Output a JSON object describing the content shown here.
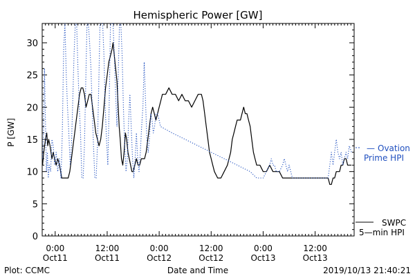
{
  "chart_data": {
    "type": "line",
    "title": "Hemispheric Power [GW]",
    "xlabel": "Date and Time",
    "ylabel": "P [GW]",
    "xlim_hours": [
      -4,
      92
    ],
    "ylim": [
      0,
      33
    ],
    "yticks": [
      0,
      5,
      10,
      15,
      20,
      25,
      30
    ],
    "xticks": [
      {
        "h": 0,
        "t1": "0:00",
        "t2": "Oct11"
      },
      {
        "h": 16,
        "t1": "12:00",
        "t2": "Oct11"
      },
      {
        "h": 32,
        "t1": "0:00",
        "t2": "Oct12"
      },
      {
        "h": 48,
        "t1": "12:00",
        "t2": "Oct12"
      },
      {
        "h": 64,
        "t1": "0:00",
        "t2": "Oct13"
      },
      {
        "h": 80,
        "t1": "12:00",
        "t2": "Oct13"
      }
    ],
    "series": [
      {
        "name": "SWPC 5-min HPI",
        "color": "#000000",
        "style": "solid",
        "points": [
          [
            -3.9,
            11
          ],
          [
            -3.5,
            13
          ],
          [
            -3,
            15
          ],
          [
            -2.6,
            16
          ],
          [
            -2.3,
            14
          ],
          [
            -2,
            15
          ],
          [
            -1.6,
            14
          ],
          [
            -1,
            12
          ],
          [
            -0.6,
            13
          ],
          [
            -0.2,
            12
          ],
          [
            0.3,
            11
          ],
          [
            0.8,
            12
          ],
          [
            1.3,
            11
          ],
          [
            1.7,
            10
          ],
          [
            2,
            9
          ],
          [
            4,
            9
          ],
          [
            4.5,
            10
          ],
          [
            5,
            12
          ],
          [
            5.5,
            14
          ],
          [
            6,
            16
          ],
          [
            6.5,
            18
          ],
          [
            7,
            20
          ],
          [
            7.5,
            22
          ],
          [
            8,
            23
          ],
          [
            8.5,
            23
          ],
          [
            9,
            22
          ],
          [
            9.5,
            20
          ],
          [
            10,
            21
          ],
          [
            10.5,
            22
          ],
          [
            11,
            22
          ],
          [
            11.5,
            20
          ],
          [
            12,
            18
          ],
          [
            12.5,
            16
          ],
          [
            13,
            15
          ],
          [
            13.5,
            14
          ],
          [
            14,
            15
          ],
          [
            14.5,
            17
          ],
          [
            15,
            20
          ],
          [
            15.5,
            23
          ],
          [
            16,
            25
          ],
          [
            16.5,
            27
          ],
          [
            17,
            28
          ],
          [
            17.5,
            29
          ],
          [
            17.8,
            30
          ],
          [
            18.2,
            28
          ],
          [
            18.6,
            26
          ],
          [
            19,
            24
          ],
          [
            19.4,
            20
          ],
          [
            19.7,
            17
          ],
          [
            20,
            15
          ],
          [
            20.4,
            12
          ],
          [
            20.8,
            11
          ],
          [
            21.2,
            13
          ],
          [
            21.6,
            16
          ],
          [
            22,
            15
          ],
          [
            22.4,
            13
          ],
          [
            22.8,
            12
          ],
          [
            23.2,
            11
          ],
          [
            23.6,
            10
          ],
          [
            24,
            10
          ],
          [
            24.5,
            11
          ],
          [
            25,
            12
          ],
          [
            25.5,
            11
          ],
          [
            26,
            11
          ],
          [
            26.5,
            12
          ],
          [
            27,
            12
          ],
          [
            27.5,
            12
          ],
          [
            28,
            13
          ],
          [
            28.5,
            15
          ],
          [
            29,
            17
          ],
          [
            29.5,
            19
          ],
          [
            30,
            20
          ],
          [
            30.5,
            19
          ],
          [
            31,
            18
          ],
          [
            31.5,
            19
          ],
          [
            32,
            20
          ],
          [
            32.5,
            21
          ],
          [
            33,
            22
          ],
          [
            34,
            22
          ],
          [
            35,
            23
          ],
          [
            36,
            22
          ],
          [
            37,
            22
          ],
          [
            38,
            21
          ],
          [
            39,
            22
          ],
          [
            40,
            21
          ],
          [
            41,
            21
          ],
          [
            42,
            20
          ],
          [
            43,
            21
          ],
          [
            44,
            22
          ],
          [
            45,
            22
          ],
          [
            45.5,
            21
          ],
          [
            46,
            19
          ],
          [
            46.5,
            17
          ],
          [
            47,
            15
          ],
          [
            47.5,
            13
          ],
          [
            48,
            12
          ],
          [
            48.5,
            11
          ],
          [
            49,
            10
          ],
          [
            50,
            9
          ],
          [
            51,
            9
          ],
          [
            52,
            10
          ],
          [
            53,
            11
          ],
          [
            54,
            13
          ],
          [
            54.5,
            15
          ],
          [
            55,
            16
          ],
          [
            55.5,
            17
          ],
          [
            56,
            18
          ],
          [
            57,
            18
          ],
          [
            57.5,
            19
          ],
          [
            58,
            20
          ],
          [
            58.5,
            19
          ],
          [
            59,
            19
          ],
          [
            59.5,
            18
          ],
          [
            60,
            17
          ],
          [
            60.5,
            15
          ],
          [
            61,
            13
          ],
          [
            61.5,
            12
          ],
          [
            62,
            11
          ],
          [
            63,
            11
          ],
          [
            64,
            10
          ],
          [
            65,
            10
          ],
          [
            66,
            11
          ],
          [
            67,
            10
          ],
          [
            68,
            10
          ],
          [
            69,
            10
          ],
          [
            70,
            9
          ],
          [
            72,
            9
          ],
          [
            73,
            9
          ],
          [
            74,
            9
          ],
          [
            75,
            9
          ],
          [
            76,
            9
          ],
          [
            77,
            9
          ],
          [
            78,
            9
          ],
          [
            79,
            9
          ],
          [
            80,
            9
          ],
          [
            81,
            9
          ],
          [
            82,
            9
          ],
          [
            83,
            9
          ],
          [
            84,
            9
          ],
          [
            84.5,
            8
          ],
          [
            85,
            8
          ],
          [
            85.5,
            9
          ],
          [
            86,
            9
          ],
          [
            86.5,
            10
          ],
          [
            87,
            10
          ],
          [
            87.5,
            10
          ],
          [
            88,
            11
          ],
          [
            88.5,
            11
          ],
          [
            89,
            12
          ],
          [
            89.5,
            12
          ],
          [
            90,
            11
          ],
          [
            90.5,
            11
          ],
          [
            91.2,
            11
          ]
        ]
      },
      {
        "name": "Ovation Prime HPI",
        "color": "#1f4fbf",
        "style": "dotted",
        "points": [
          [
            -3.9,
            12
          ],
          [
            -3.6,
            16
          ],
          [
            -3.3,
            26
          ],
          [
            -3,
            18
          ],
          [
            -2.7,
            10
          ],
          [
            -2.4,
            13
          ],
          [
            -2.1,
            9
          ],
          [
            -1.8,
            11
          ],
          [
            -1.4,
            10
          ],
          [
            -1,
            15
          ],
          [
            -0.6,
            14
          ],
          [
            -0.2,
            11
          ],
          [
            0.3,
            13
          ],
          [
            0.8,
            10
          ],
          [
            1.3,
            12
          ],
          [
            1.8,
            9
          ],
          [
            2.2,
            16
          ],
          [
            2.6,
            29
          ],
          [
            3,
            33
          ],
          [
            3.4,
            25
          ],
          [
            3.8,
            20
          ],
          [
            4.2,
            16
          ],
          [
            4.6,
            11
          ],
          [
            5,
            14
          ],
          [
            5.4,
            21
          ],
          [
            5.8,
            28
          ],
          [
            6.2,
            33
          ],
          [
            6.6,
            33
          ],
          [
            7,
            26
          ],
          [
            7.4,
            20
          ],
          [
            7.8,
            16
          ],
          [
            8.2,
            9
          ],
          [
            8.6,
            9
          ],
          [
            9,
            14
          ],
          [
            9.4,
            24
          ],
          [
            9.8,
            33
          ],
          [
            10.2,
            33
          ],
          [
            10.6,
            30
          ],
          [
            11,
            26
          ],
          [
            11.4,
            20
          ],
          [
            11.8,
            14
          ],
          [
            12.2,
            9
          ],
          [
            12.6,
            9
          ],
          [
            13,
            14
          ],
          [
            13.4,
            23
          ],
          [
            13.8,
            33
          ],
          [
            14.2,
            33
          ],
          [
            14.6,
            33
          ],
          [
            15,
            28
          ],
          [
            15.4,
            20
          ],
          [
            15.8,
            15
          ],
          [
            16.2,
            11
          ],
          [
            16.6,
            20
          ],
          [
            17,
            33
          ],
          [
            17.4,
            33
          ],
          [
            17.8,
            33
          ],
          [
            18.2,
            28
          ],
          [
            18.6,
            22
          ],
          [
            19,
            17
          ],
          [
            19.4,
            25
          ],
          [
            19.8,
            33
          ],
          [
            20.2,
            33
          ],
          [
            20.6,
            28
          ],
          [
            21,
            20
          ],
          [
            21.4,
            14
          ],
          [
            21.8,
            10
          ],
          [
            22.2,
            12
          ],
          [
            22.6,
            18
          ],
          [
            23,
            22
          ],
          [
            23.4,
            17
          ],
          [
            23.8,
            12
          ],
          [
            24.2,
            9
          ],
          [
            24.6,
            12
          ],
          [
            25,
            16
          ],
          [
            25.4,
            12
          ],
          [
            25.8,
            10
          ],
          [
            26.2,
            13
          ],
          [
            26.6,
            17
          ],
          [
            27,
            20
          ],
          [
            27.4,
            27
          ],
          [
            27.8,
            21
          ],
          [
            28.2,
            15
          ],
          [
            28.6,
            13
          ],
          [
            29,
            15
          ],
          [
            29.4,
            19
          ],
          [
            29.8,
            18
          ],
          [
            30.2,
            16
          ],
          [
            30.6,
            17
          ],
          [
            31,
            19
          ],
          [
            31.5,
            19
          ],
          [
            32,
            18
          ],
          [
            32.4,
            17
          ],
          [
            36,
            16
          ],
          [
            40,
            15
          ],
          [
            44,
            14
          ],
          [
            48,
            13
          ],
          [
            52,
            12
          ],
          [
            56,
            11
          ],
          [
            60,
            10
          ],
          [
            62,
            9
          ],
          [
            64,
            9
          ],
          [
            65,
            10
          ],
          [
            66,
            11
          ],
          [
            66.5,
            12
          ],
          [
            67,
            11
          ],
          [
            67.5,
            11
          ],
          [
            68,
            10
          ],
          [
            69,
            10
          ],
          [
            70,
            11
          ],
          [
            70.5,
            12
          ],
          [
            71,
            11
          ],
          [
            71.5,
            10
          ],
          [
            72,
            11
          ],
          [
            73,
            9
          ],
          [
            75,
            9
          ],
          [
            77,
            9
          ],
          [
            79,
            9
          ],
          [
            81,
            9
          ],
          [
            83,
            9
          ],
          [
            84,
            9
          ],
          [
            84.5,
            11
          ],
          [
            85,
            13
          ],
          [
            85.5,
            11
          ],
          [
            86,
            13
          ],
          [
            86.5,
            15
          ],
          [
            87,
            13
          ],
          [
            87.5,
            12
          ],
          [
            88,
            13
          ],
          [
            88.5,
            11
          ],
          [
            89,
            12
          ],
          [
            89.5,
            13
          ],
          [
            90,
            12
          ],
          [
            90.5,
            14
          ],
          [
            91.2,
            13
          ]
        ]
      }
    ],
    "legend": [
      {
        "series": "Ovation Prime HPI",
        "marker": "—",
        "line1": "Ovation",
        "line2": "Prime HPI"
      },
      {
        "series": "SWPC 5-min HPI",
        "line1": "SWPC",
        "line2": "5—min HPI"
      }
    ],
    "legend_position": "right"
  },
  "footer": {
    "left": "Plot: CCMC",
    "right": "2019/10/13 21:40:21"
  }
}
